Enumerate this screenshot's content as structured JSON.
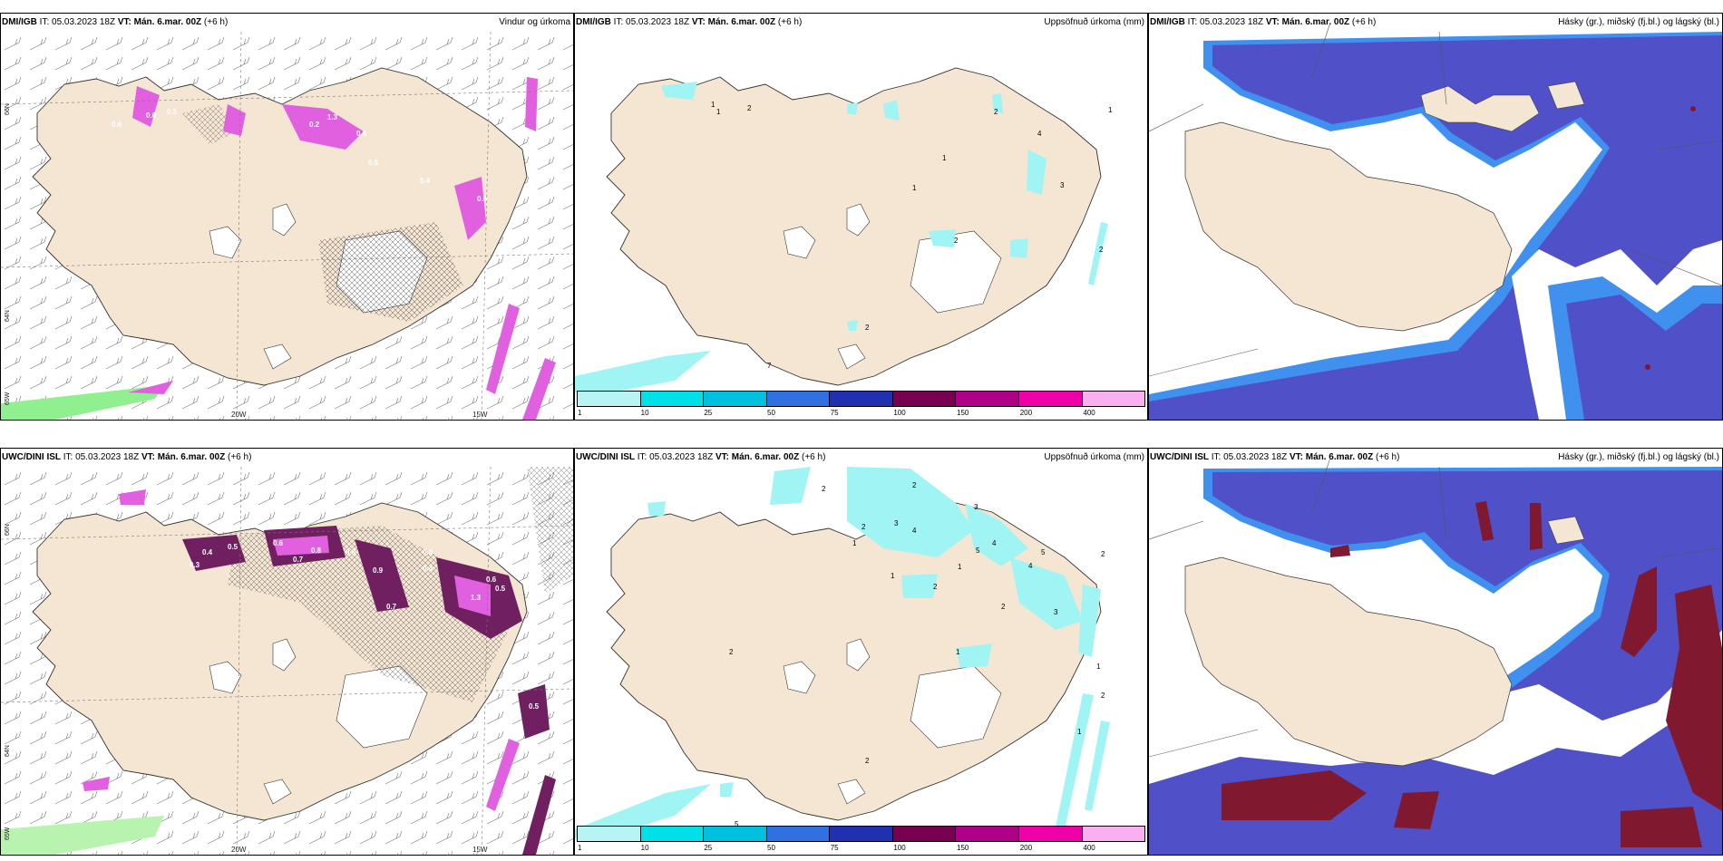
{
  "panels": {
    "tl": {
      "model_label": "DMI/IGB",
      "it_label": "IT: 05.03.2023 18Z",
      "vt_label": "VT: Mán. 6.mar. 00Z",
      "lead_label": "(+6 h)",
      "field_title": "Vindur og úrkoma",
      "lat_labels": [
        "66N",
        "64N",
        "65W"
      ],
      "lon_labels": [
        "20W",
        "15W"
      ],
      "precip_values": [
        "0.6",
        "0.5",
        "0.6",
        "0.2",
        "0.6",
        "1.3",
        "0.5",
        "0.4",
        "0.6"
      ]
    },
    "tm": {
      "model_label": "DMI/IGB",
      "it_label": "IT: 05.03.2023 18Z",
      "vt_label": "VT: Mán. 6.mar. 00Z",
      "lead_label": "(+6 h)",
      "field_title": "Uppsöfnuð úrkoma (mm)",
      "values": [
        "1",
        "2",
        "2",
        "4",
        "1",
        "1",
        "3",
        "1",
        "2",
        "2",
        "2",
        "7",
        "1"
      ]
    },
    "tr": {
      "model_label": "DMI/IGB",
      "it_label": "IT: 05.03.2023 18Z",
      "vt_label": "VT: Mán. 6.mar. 00Z",
      "lead_label": "(+6 h)",
      "field_title": "Hásky (gr.), miðský (fj.bl.) og lágský (bl.)"
    },
    "bl": {
      "model_label": "UWC/DINI ISL",
      "it_label": "IT: 05.03.2023 18Z",
      "vt_label": "VT: Mán. 6.mar. 00Z",
      "lead_label": "(+6 h)",
      "field_title": "",
      "lat_labels": [
        "66N",
        "64N",
        "65W"
      ],
      "lon_labels": [
        "20W",
        "15W"
      ],
      "precip_values": [
        "0.4",
        "0.3",
        "0.6",
        "0.5",
        "0.9",
        "0.7",
        "0.8",
        "1.3",
        "0.8",
        "0.4",
        "0.7",
        "0.5",
        "0.6",
        "0.4",
        "0.5"
      ]
    },
    "bm": {
      "model_label": "UWC/DINI ISL",
      "it_label": "IT: 05.03.2023 18Z",
      "vt_label": "VT: Mán. 6.mar. 00Z",
      "lead_label": "(+6 h)",
      "field_title": "Uppsöfnuð úrkoma (mm)",
      "values": [
        "2",
        "2",
        "2",
        "1",
        "3",
        "4",
        "3",
        "1",
        "4",
        "5",
        "4",
        "2",
        "3",
        "2",
        "1",
        "1",
        "5",
        "2",
        "2",
        "1",
        "1",
        "2",
        "2",
        "5"
      ]
    },
    "br": {
      "model_label": "UWC/DINI ISL",
      "it_label": "IT: 05.03.2023 18Z",
      "vt_label": "VT: Mán. 6.mar. 00Z",
      "lead_label": "(+6 h)",
      "field_title": "Hásky (gr.), miðský (fj.bl.) og lágský (bl.)"
    }
  },
  "colorbar": {
    "labels": [
      "1",
      "10",
      "25",
      "50",
      "75",
      "100",
      "150",
      "200",
      "400"
    ],
    "colors": [
      "#b8f4f4",
      "#00e0e8",
      "#00c0e0",
      "#3070e0",
      "#2030b0",
      "#780050",
      "#b0008a",
      "#f000a8",
      "#f8b0f0"
    ]
  },
  "colors": {
    "land": "#f5e6d3",
    "cloud_low": "#5050c8",
    "cloud_low_edge": "#4090f0",
    "cloud_mid": "#801830",
    "precip": "#e060e0",
    "precip_dark": "#702060",
    "acc_precip": "#a0f4f4",
    "snow_edge": "#90f090"
  }
}
